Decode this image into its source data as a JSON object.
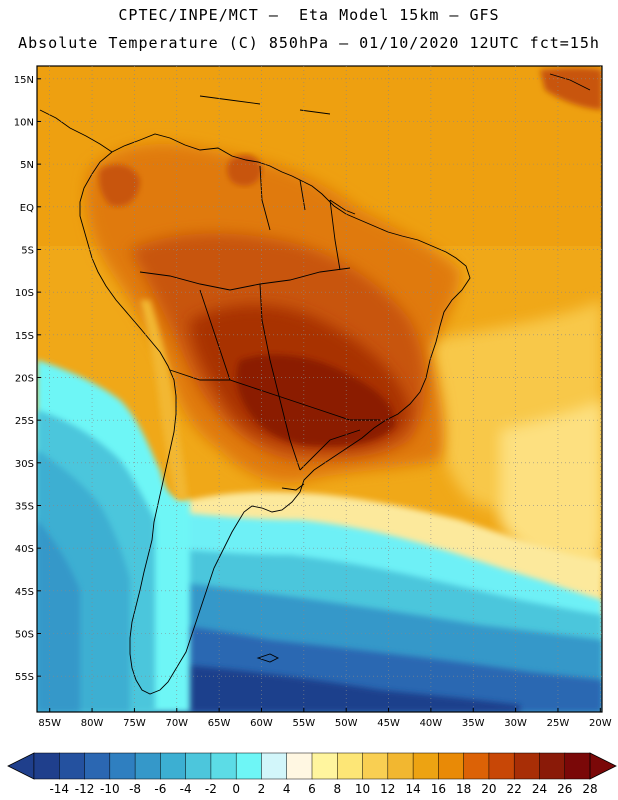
{
  "header": {
    "line1": "CPTEC/INPE/MCT —  Eta Model 15km — GFS",
    "line2": "Absolute Temperature (C) 850hPa — 01/10/2020 12UTC fct=15h"
  },
  "axes": {
    "lat_labels": [
      "15N",
      "10N",
      "5N",
      "EQ",
      "5S",
      "10S",
      "15S",
      "20S",
      "25S",
      "30S",
      "35S",
      "40S",
      "45S",
      "50S",
      "55S"
    ],
    "lat_values": [
      15,
      10,
      5,
      0,
      -5,
      -10,
      -15,
      -20,
      -25,
      -30,
      -35,
      -40,
      -45,
      -50,
      -55
    ],
    "lon_labels": [
      "85W",
      "80W",
      "75W",
      "70W",
      "65W",
      "60W",
      "55W",
      "50W",
      "45W",
      "40W",
      "35W",
      "30W",
      "25W",
      "20W"
    ],
    "lon_values": [
      -85,
      -80,
      -75,
      -70,
      -65,
      -60,
      -55,
      -50,
      -45,
      -40,
      -35,
      -30,
      -25,
      -20
    ]
  },
  "colorbar": {
    "labels": [
      "-14",
      "-12",
      "-10",
      "-8",
      "-6",
      "-4",
      "-2",
      "0",
      "2",
      "4",
      "6",
      "8",
      "10",
      "12",
      "14",
      "16",
      "18",
      "20",
      "22",
      "24",
      "26",
      "28"
    ],
    "colors": [
      "#1f3f8c",
      "#24519f",
      "#2b67b2",
      "#2f7fc0",
      "#3598c9",
      "#3cafd2",
      "#4cc6dc",
      "#5cdce6",
      "#6ef6f6",
      "#d2f6fa",
      "#fff7e2",
      "#fff59e",
      "#fde676",
      "#f9cf52",
      "#f2b730",
      "#eda312",
      "#e98a06",
      "#dc6206",
      "#c84706",
      "#a82e06",
      "#8a1a08",
      "#7a0808"
    ]
  },
  "colors": {
    "sea": "#f2b01a",
    "land": "#e9960a",
    "hot": "#c8520a",
    "hotter": "#a83206",
    "hottest": "#8b1e06",
    "cold_ocean": "#2a5fb0",
    "cyan": "#4fd6e6"
  }
}
